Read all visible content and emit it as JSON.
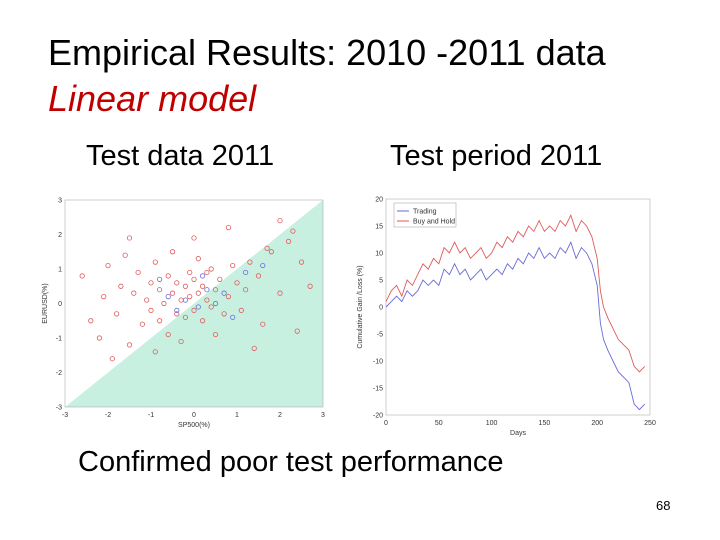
{
  "slide": {
    "title_line1": "Empirical Results: 2010 -2011 data",
    "title_line2": "Linear model",
    "left_subtitle": "Test data 2011",
    "right_subtitle": "Test period 2011",
    "conclusion": "Confirmed poor test performance",
    "page_number": "68",
    "colors": {
      "title_accent": "#c00000",
      "region_fill": "#c8f0e0",
      "trading": "#6a6ad8",
      "buy_and_hold": "#e05a5a"
    }
  },
  "chart_data": [
    {
      "type": "scatter",
      "xlabel": "SP500(%)",
      "ylabel": "EURUSD(%)",
      "xlim": [
        -3,
        3
      ],
      "ylim": [
        -3,
        3
      ],
      "xticks": [
        "-3",
        "-2",
        "-1",
        "0",
        "1",
        "2",
        "3"
      ],
      "yticks": [
        "-3",
        "-2",
        "-1",
        "0",
        "1",
        "2",
        "3"
      ],
      "shaded_region": {
        "description": "area below line y = x",
        "line": [
          [
            -3,
            -3
          ],
          [
            3,
            3
          ]
        ]
      },
      "series": [
        {
          "marker": "circle",
          "color": "#e05a5a",
          "points": [
            [
              -2.6,
              0.8
            ],
            [
              -2.4,
              -0.5
            ],
            [
              -2.1,
              0.2
            ],
            [
              -2.0,
              1.1
            ],
            [
              -1.8,
              -0.3
            ],
            [
              -1.7,
              0.5
            ],
            [
              -1.6,
              1.4
            ],
            [
              -1.5,
              -1.2
            ],
            [
              -1.4,
              0.3
            ],
            [
              -1.3,
              0.9
            ],
            [
              -1.2,
              -0.6
            ],
            [
              -1.1,
              0.1
            ],
            [
              -1.0,
              0.6
            ],
            [
              -1.0,
              -0.2
            ],
            [
              -0.9,
              1.2
            ],
            [
              -0.8,
              0.4
            ],
            [
              -0.8,
              -0.5
            ],
            [
              -0.7,
              0.0
            ],
            [
              -0.6,
              0.8
            ],
            [
              -0.6,
              -0.9
            ],
            [
              -0.5,
              0.3
            ],
            [
              -0.5,
              1.5
            ],
            [
              -0.4,
              -0.3
            ],
            [
              -0.4,
              0.6
            ],
            [
              -0.3,
              0.1
            ],
            [
              -0.3,
              -1.1
            ],
            [
              -0.2,
              0.5
            ],
            [
              -0.2,
              -0.4
            ],
            [
              -0.1,
              0.9
            ],
            [
              -0.1,
              0.2
            ],
            [
              0.0,
              -0.2
            ],
            [
              0.0,
              0.7
            ],
            [
              0.1,
              0.3
            ],
            [
              0.1,
              1.3
            ],
            [
              0.2,
              -0.5
            ],
            [
              0.2,
              0.5
            ],
            [
              0.3,
              0.1
            ],
            [
              0.3,
              0.9
            ],
            [
              0.4,
              -0.1
            ],
            [
              0.4,
              1.0
            ],
            [
              0.5,
              0.4
            ],
            [
              0.6,
              0.7
            ],
            [
              0.7,
              -0.3
            ],
            [
              0.8,
              0.2
            ],
            [
              0.9,
              1.1
            ],
            [
              1.0,
              0.6
            ],
            [
              1.1,
              -0.2
            ],
            [
              1.2,
              0.4
            ],
            [
              1.3,
              1.2
            ],
            [
              1.5,
              0.8
            ],
            [
              1.6,
              -0.6
            ],
            [
              1.8,
              1.5
            ],
            [
              2.0,
              0.3
            ],
            [
              2.2,
              1.8
            ],
            [
              2.5,
              1.2
            ],
            [
              2.7,
              0.5
            ],
            [
              -2.2,
              -1.0
            ],
            [
              -1.9,
              -1.6
            ],
            [
              -0.9,
              -1.4
            ],
            [
              0.5,
              -0.9
            ],
            [
              1.4,
              -1.3
            ],
            [
              2.4,
              -0.8
            ],
            [
              -1.5,
              1.9
            ],
            [
              0.0,
              1.9
            ],
            [
              0.8,
              2.2
            ],
            [
              2.0,
              2.4
            ],
            [
              1.7,
              1.6
            ],
            [
              2.3,
              2.1
            ]
          ]
        },
        {
          "marker": "circle",
          "color": "#6a6ad8",
          "points": [
            [
              -0.6,
              0.2
            ],
            [
              -0.2,
              0.1
            ],
            [
              0.1,
              -0.1
            ],
            [
              0.3,
              0.4
            ],
            [
              0.5,
              0.0
            ],
            [
              -0.4,
              -0.2
            ],
            [
              0.7,
              0.3
            ],
            [
              0.9,
              -0.4
            ],
            [
              1.2,
              0.9
            ],
            [
              1.6,
              1.1
            ],
            [
              0.2,
              0.8
            ],
            [
              -0.8,
              0.7
            ]
          ]
        }
      ]
    },
    {
      "type": "line",
      "xlabel": "Days",
      "ylabel": "Cumulative Gain /Loss (%)",
      "xlim": [
        0,
        250
      ],
      "ylim": [
        -20,
        20
      ],
      "xticks": [
        "0",
        "50",
        "100",
        "150",
        "200",
        "250"
      ],
      "yticks": [
        "-20",
        "-15",
        "-10",
        "-5",
        "0",
        "5",
        "10",
        "15",
        "20"
      ],
      "legend_position": "top-left",
      "series": [
        {
          "name": "Trading",
          "color": "#6a6ad8",
          "points": [
            [
              0,
              0
            ],
            [
              5,
              1
            ],
            [
              10,
              2
            ],
            [
              15,
              1
            ],
            [
              20,
              3
            ],
            [
              25,
              2
            ],
            [
              30,
              3
            ],
            [
              35,
              5
            ],
            [
              40,
              4
            ],
            [
              45,
              5
            ],
            [
              50,
              4
            ],
            [
              55,
              7
            ],
            [
              60,
              6
            ],
            [
              65,
              8
            ],
            [
              70,
              6
            ],
            [
              75,
              7
            ],
            [
              80,
              5
            ],
            [
              85,
              6
            ],
            [
              90,
              7
            ],
            [
              95,
              5
            ],
            [
              100,
              6
            ],
            [
              105,
              7
            ],
            [
              110,
              6
            ],
            [
              115,
              8
            ],
            [
              120,
              7
            ],
            [
              125,
              9
            ],
            [
              130,
              8
            ],
            [
              135,
              10
            ],
            [
              140,
              9
            ],
            [
              145,
              11
            ],
            [
              150,
              9
            ],
            [
              155,
              10
            ],
            [
              160,
              9
            ],
            [
              165,
              11
            ],
            [
              170,
              10
            ],
            [
              175,
              12
            ],
            [
              180,
              9
            ],
            [
              185,
              11
            ],
            [
              190,
              10
            ],
            [
              195,
              8
            ],
            [
              200,
              4
            ],
            [
              203,
              -3
            ],
            [
              206,
              -6
            ],
            [
              210,
              -8
            ],
            [
              215,
              -10
            ],
            [
              220,
              -12
            ],
            [
              225,
              -13
            ],
            [
              230,
              -14
            ],
            [
              235,
              -18
            ],
            [
              240,
              -19
            ],
            [
              245,
              -18
            ]
          ]
        },
        {
          "name": "Buy and Hold",
          "color": "#e05a5a",
          "points": [
            [
              0,
              1
            ],
            [
              5,
              3
            ],
            [
              10,
              4
            ],
            [
              15,
              2
            ],
            [
              20,
              5
            ],
            [
              25,
              4
            ],
            [
              30,
              6
            ],
            [
              35,
              8
            ],
            [
              40,
              7
            ],
            [
              45,
              9
            ],
            [
              50,
              8
            ],
            [
              55,
              11
            ],
            [
              60,
              10
            ],
            [
              65,
              12
            ],
            [
              70,
              10
            ],
            [
              75,
              11
            ],
            [
              80,
              9
            ],
            [
              85,
              10
            ],
            [
              90,
              11
            ],
            [
              95,
              9
            ],
            [
              100,
              10
            ],
            [
              105,
              12
            ],
            [
              110,
              11
            ],
            [
              115,
              13
            ],
            [
              120,
              12
            ],
            [
              125,
              14
            ],
            [
              130,
              13
            ],
            [
              135,
              15
            ],
            [
              140,
              14
            ],
            [
              145,
              16
            ],
            [
              150,
              14
            ],
            [
              155,
              15
            ],
            [
              160,
              14
            ],
            [
              165,
              16
            ],
            [
              170,
              15
            ],
            [
              175,
              17
            ],
            [
              180,
              14
            ],
            [
              185,
              16
            ],
            [
              190,
              15
            ],
            [
              195,
              13
            ],
            [
              200,
              9
            ],
            [
              203,
              3
            ],
            [
              206,
              0
            ],
            [
              210,
              -2
            ],
            [
              215,
              -4
            ],
            [
              220,
              -6
            ],
            [
              225,
              -7
            ],
            [
              230,
              -8
            ],
            [
              235,
              -11
            ],
            [
              240,
              -12
            ],
            [
              245,
              -11
            ]
          ]
        }
      ]
    }
  ]
}
